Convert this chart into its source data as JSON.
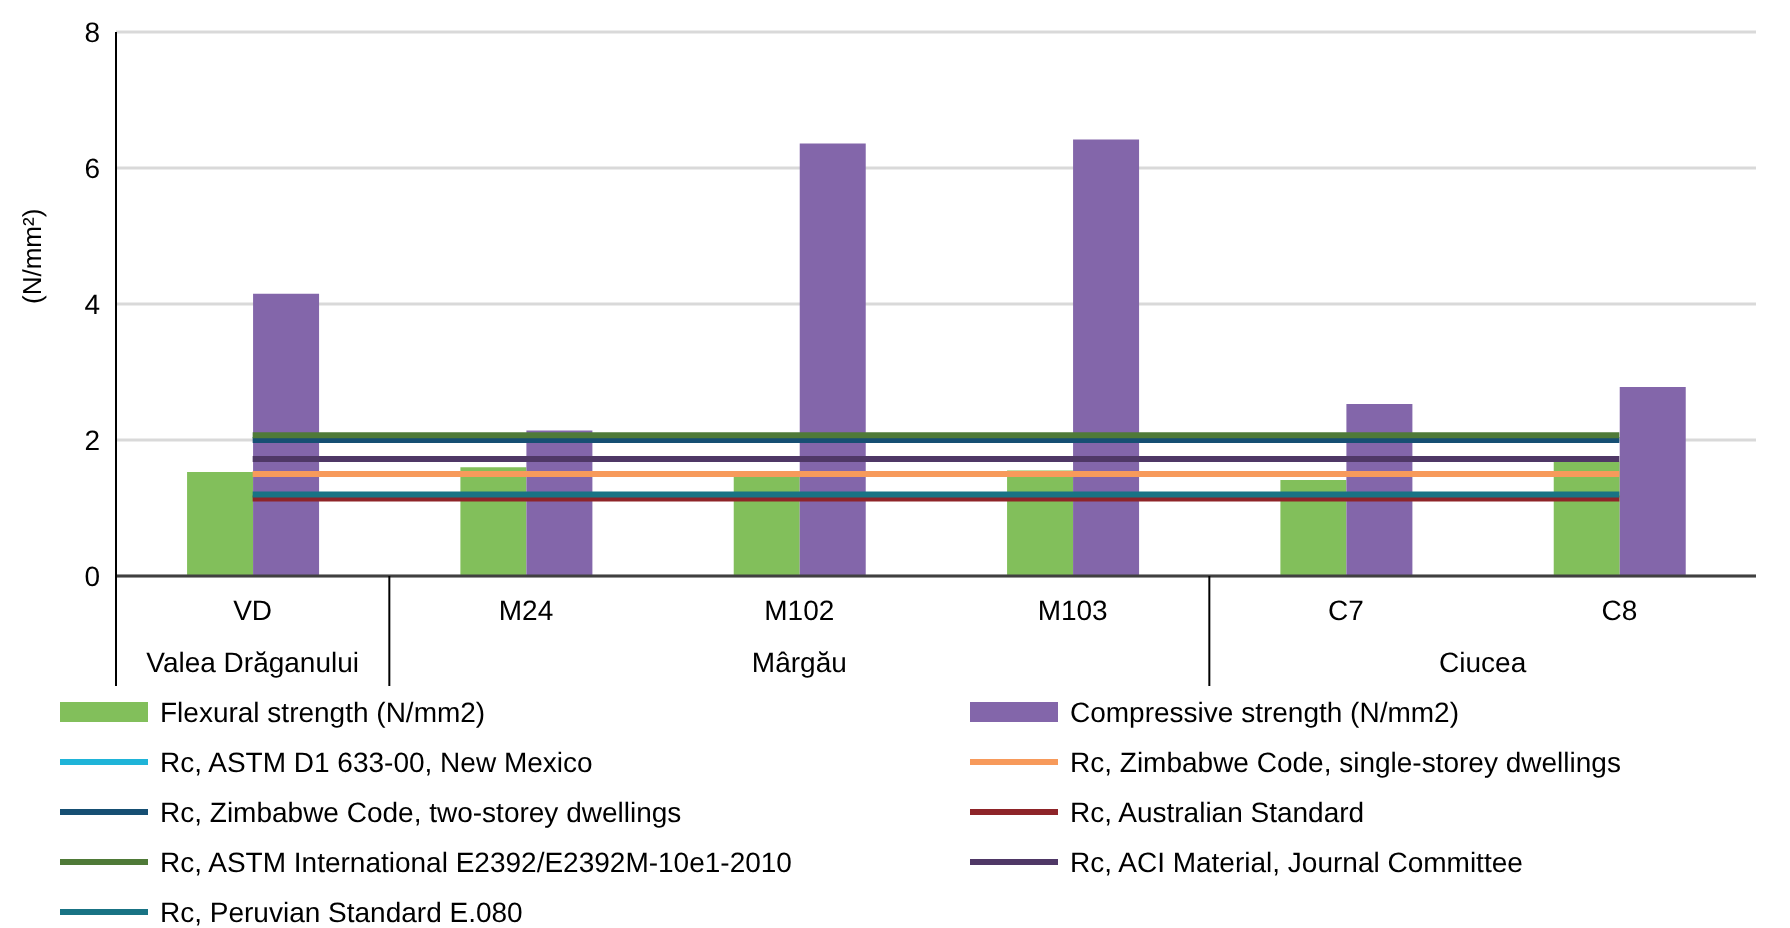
{
  "chart_data": {
    "type": "bar",
    "ylabel": "(N/mm²)",
    "categories": [
      "VD",
      "M24",
      "M102",
      "M103",
      "C7",
      "C8"
    ],
    "series": [
      {
        "name": "Flexural strength (N/mm2)",
        "color": "#82bf5b",
        "values": [
          1.53,
          1.6,
          1.48,
          1.55,
          1.41,
          1.68
        ]
      },
      {
        "name": "Compressive strength (N/mm2)",
        "color": "#8366aa",
        "values": [
          4.15,
          2.14,
          6.36,
          6.42,
          2.53,
          2.78
        ]
      },
      {
        "name": "Rc, ASTM D1 633-00, New Mexico",
        "type": "line",
        "color": "#1fb4d8",
        "values": [
          null,
          null,
          null,
          null,
          null,
          null
        ]
      },
      {
        "name": "Rc, Zimbabwe Code, single-storey dwellings",
        "type": "line",
        "color": "#f79a5b",
        "values": [
          1.5,
          1.5,
          1.5,
          1.5,
          1.5,
          1.5
        ]
      },
      {
        "name": "Rc, Zimbabwe Code, two-storey dwellings",
        "type": "line",
        "color": "#164f73",
        "values": [
          2.0,
          2.0,
          2.0,
          2.0,
          2.0,
          2.0
        ]
      },
      {
        "name": "Rc, Australian Standard",
        "type": "line",
        "color": "#8e2429",
        "values": [
          1.14,
          1.14,
          1.14,
          1.14,
          1.14,
          1.14
        ]
      },
      {
        "name": "Rc, ASTM International E2392/E2392M-10e1-2010",
        "type": "line",
        "color": "#4f7a38",
        "values": [
          2.07,
          2.07,
          2.07,
          2.07,
          2.07,
          2.07
        ]
      },
      {
        "name": "Rc, ACI Material, Journal Committee",
        "type": "line",
        "color": "#4f3866",
        "values": [
          1.72,
          1.72,
          1.72,
          1.72,
          1.72,
          1.72
        ]
      },
      {
        "name": "Rc, Peruvian Standard E.080",
        "type": "line",
        "color": "#197384",
        "values": [
          1.2,
          1.2,
          1.2,
          1.2,
          1.2,
          1.2
        ]
      }
    ],
    "ylim": [
      0,
      8
    ],
    "yticks": [
      0,
      2,
      4,
      6,
      8
    ],
    "grid": "y",
    "legend": "bottom",
    "marker": "none",
    "line_style": "solid",
    "annotations": [
      "Valea Drăganului",
      "Mârgău",
      "Ciucea"
    ]
  }
}
